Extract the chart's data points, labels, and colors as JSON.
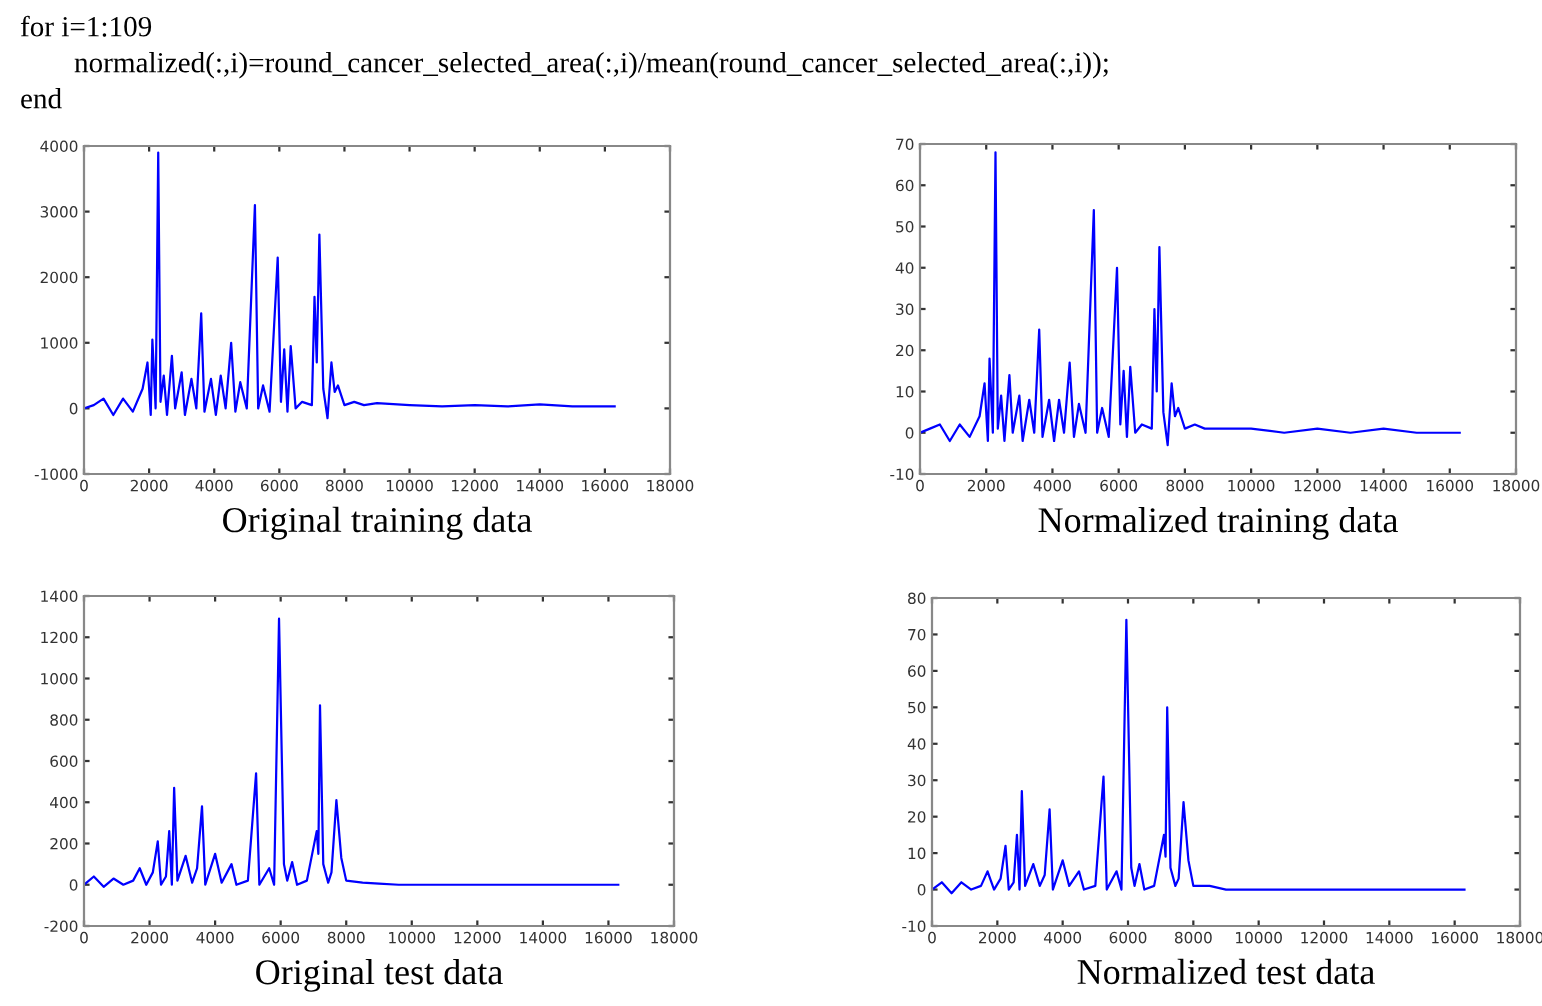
{
  "chart_data": [
    {
      "type": "line",
      "title": "Original training data",
      "annotations": [
        "for i=1:109",
        "normalized(:,i)=round_cancer_selected_area(:,i)/mean(round_cancer_selected_area(:,i));",
        "end"
      ],
      "series": [
        {
          "color": "#0000ff",
          "x": [
            0,
            300,
            600,
            900,
            1200,
            1500,
            1800,
            1950,
            2050,
            2100,
            2200,
            2280,
            2350,
            2450,
            2550,
            2700,
            2800,
            3000,
            3100,
            3300,
            3450,
            3600,
            3700,
            3900,
            4050,
            4200,
            4350,
            4520,
            4650,
            4800,
            5000,
            5250,
            5350,
            5500,
            5700,
            5950,
            6050,
            6150,
            6250,
            6350,
            6500,
            6700,
            7000,
            7080,
            7150,
            7230,
            7350,
            7480,
            7600,
            7700,
            7800,
            8000,
            8300,
            8600,
            9000,
            10000,
            11000,
            12000,
            13000,
            14000,
            15000,
            16300
          ],
          "values": [
            0,
            50,
            150,
            -100,
            150,
            -50,
            300,
            700,
            -100,
            1050,
            0,
            3900,
            100,
            500,
            -100,
            800,
            0,
            550,
            -100,
            450,
            0,
            1450,
            -50,
            450,
            -100,
            500,
            0,
            1000,
            -50,
            400,
            0,
            3100,
            0,
            350,
            -50,
            2300,
            100,
            900,
            -50,
            950,
            0,
            100,
            50,
            1700,
            700,
            2650,
            300,
            -150,
            700,
            250,
            350,
            50,
            100,
            50,
            80,
            50,
            30,
            50,
            30,
            60,
            30,
            30
          ]
        }
      ],
      "xlim": [
        0,
        18000
      ],
      "xticks": [
        0,
        2000,
        4000,
        6000,
        8000,
        10000,
        12000,
        14000,
        16000,
        18000
      ],
      "ylim": [
        -1000,
        4000
      ],
      "yticks": [
        -1000,
        0,
        1000,
        2000,
        3000,
        4000
      ],
      "grid": false,
      "legend": false
    },
    {
      "type": "line",
      "title": "Normalized training data",
      "series": [
        {
          "color": "#0000ff",
          "x": [
            0,
            300,
            600,
            900,
            1200,
            1500,
            1800,
            1950,
            2050,
            2100,
            2200,
            2280,
            2350,
            2450,
            2550,
            2700,
            2800,
            3000,
            3100,
            3300,
            3450,
            3600,
            3700,
            3900,
            4050,
            4200,
            4350,
            4520,
            4650,
            4800,
            5000,
            5250,
            5350,
            5500,
            5700,
            5950,
            6050,
            6150,
            6250,
            6350,
            6500,
            6700,
            7000,
            7080,
            7150,
            7230,
            7350,
            7480,
            7600,
            7700,
            7800,
            8000,
            8300,
            8600,
            9000,
            10000,
            11000,
            12000,
            13000,
            14000,
            15000,
            16300
          ],
          "values": [
            0,
            1,
            2,
            -2,
            2,
            -1,
            4,
            12,
            -2,
            18,
            0,
            68,
            1,
            9,
            -2,
            14,
            0,
            9,
            -2,
            8,
            0,
            25,
            -1,
            8,
            -2,
            8,
            0,
            17,
            -1,
            7,
            0,
            54,
            0,
            6,
            -1,
            40,
            2,
            15,
            -1,
            16,
            0,
            2,
            1,
            30,
            10,
            45,
            5,
            -3,
            12,
            4,
            6,
            1,
            2,
            1,
            1,
            1,
            0,
            1,
            0,
            1,
            0,
            0
          ]
        }
      ],
      "xlim": [
        0,
        18000
      ],
      "xticks": [
        0,
        2000,
        4000,
        6000,
        8000,
        10000,
        12000,
        14000,
        16000,
        18000
      ],
      "ylim": [
        -10,
        70
      ],
      "yticks": [
        -10,
        0,
        10,
        20,
        30,
        40,
        50,
        60,
        70
      ],
      "grid": false,
      "legend": false
    },
    {
      "type": "line",
      "title": "Original test data",
      "series": [
        {
          "color": "#0000ff",
          "x": [
            0,
            300,
            600,
            900,
            1200,
            1500,
            1700,
            1900,
            2100,
            2250,
            2350,
            2500,
            2600,
            2680,
            2750,
            2850,
            3100,
            3300,
            3450,
            3600,
            3700,
            4000,
            4200,
            4500,
            4650,
            5000,
            5250,
            5350,
            5650,
            5800,
            5950,
            6100,
            6200,
            6350,
            6500,
            6800,
            7100,
            7150,
            7200,
            7300,
            7450,
            7550,
            7700,
            7850,
            8000,
            8500,
            9000,
            9600,
            16300
          ],
          "values": [
            0,
            40,
            -10,
            30,
            0,
            20,
            80,
            0,
            60,
            210,
            0,
            40,
            260,
            0,
            470,
            20,
            140,
            10,
            80,
            380,
            0,
            150,
            10,
            100,
            0,
            20,
            540,
            0,
            80,
            0,
            1290,
            100,
            20,
            110,
            0,
            20,
            260,
            150,
            870,
            100,
            10,
            60,
            410,
            130,
            20,
            10,
            5,
            0,
            0
          ]
        }
      ],
      "xlim": [
        0,
        18000
      ],
      "xticks": [
        0,
        2000,
        4000,
        6000,
        8000,
        10000,
        12000,
        14000,
        16000,
        18000
      ],
      "ylim": [
        -200,
        1400
      ],
      "yticks": [
        -200,
        0,
        200,
        400,
        600,
        800,
        1000,
        1200,
        1400
      ],
      "grid": false,
      "legend": false
    },
    {
      "type": "line",
      "title": "Normalized test data",
      "series": [
        {
          "color": "#0000ff",
          "x": [
            0,
            300,
            600,
            900,
            1200,
            1500,
            1700,
            1900,
            2100,
            2250,
            2350,
            2500,
            2600,
            2680,
            2750,
            2850,
            3100,
            3300,
            3450,
            3600,
            3700,
            4000,
            4200,
            4500,
            4650,
            5000,
            5250,
            5350,
            5650,
            5800,
            5950,
            6100,
            6200,
            6350,
            6500,
            6800,
            7100,
            7150,
            7200,
            7300,
            7450,
            7550,
            7700,
            7850,
            8000,
            8500,
            9000,
            9600,
            16300
          ],
          "values": [
            0,
            2,
            -1,
            2,
            0,
            1,
            5,
            0,
            3,
            12,
            0,
            2,
            15,
            0,
            27,
            1,
            7,
            1,
            4,
            22,
            0,
            8,
            1,
            5,
            0,
            1,
            31,
            0,
            5,
            0,
            74,
            6,
            1,
            7,
            0,
            1,
            15,
            9,
            50,
            6,
            1,
            3,
            24,
            8,
            1,
            1,
            0,
            0,
            0
          ]
        }
      ],
      "xlim": [
        0,
        18000
      ],
      "xticks": [
        0,
        2000,
        4000,
        6000,
        8000,
        10000,
        12000,
        14000,
        16000,
        18000
      ],
      "ylim": [
        -10,
        80
      ],
      "yticks": [
        -10,
        0,
        10,
        20,
        30,
        40,
        50,
        60,
        70,
        80
      ],
      "grid": false,
      "legend": false
    }
  ]
}
